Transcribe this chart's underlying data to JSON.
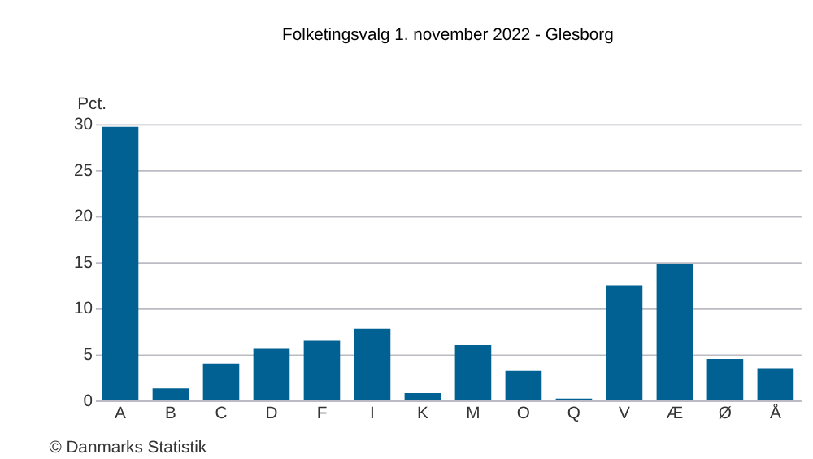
{
  "chart_data": {
    "type": "bar",
    "title": "Folketingsvalg 1. november 2022 - Glesborg",
    "ylabel": "Pct.",
    "categories": [
      "A",
      "B",
      "C",
      "D",
      "F",
      "I",
      "K",
      "M",
      "O",
      "Q",
      "V",
      "Æ",
      "Ø",
      "Å"
    ],
    "values": [
      29.7,
      1.3,
      4.0,
      5.6,
      6.5,
      7.8,
      0.8,
      6.0,
      3.2,
      0.2,
      12.5,
      14.8,
      4.5,
      3.5
    ],
    "color": "#006192",
    "ylim": [
      0,
      30
    ],
    "yticks": [
      0,
      5,
      10,
      15,
      20,
      25,
      30
    ],
    "grid": "y",
    "annotations": [
      "© Danmarks Statistik"
    ]
  }
}
